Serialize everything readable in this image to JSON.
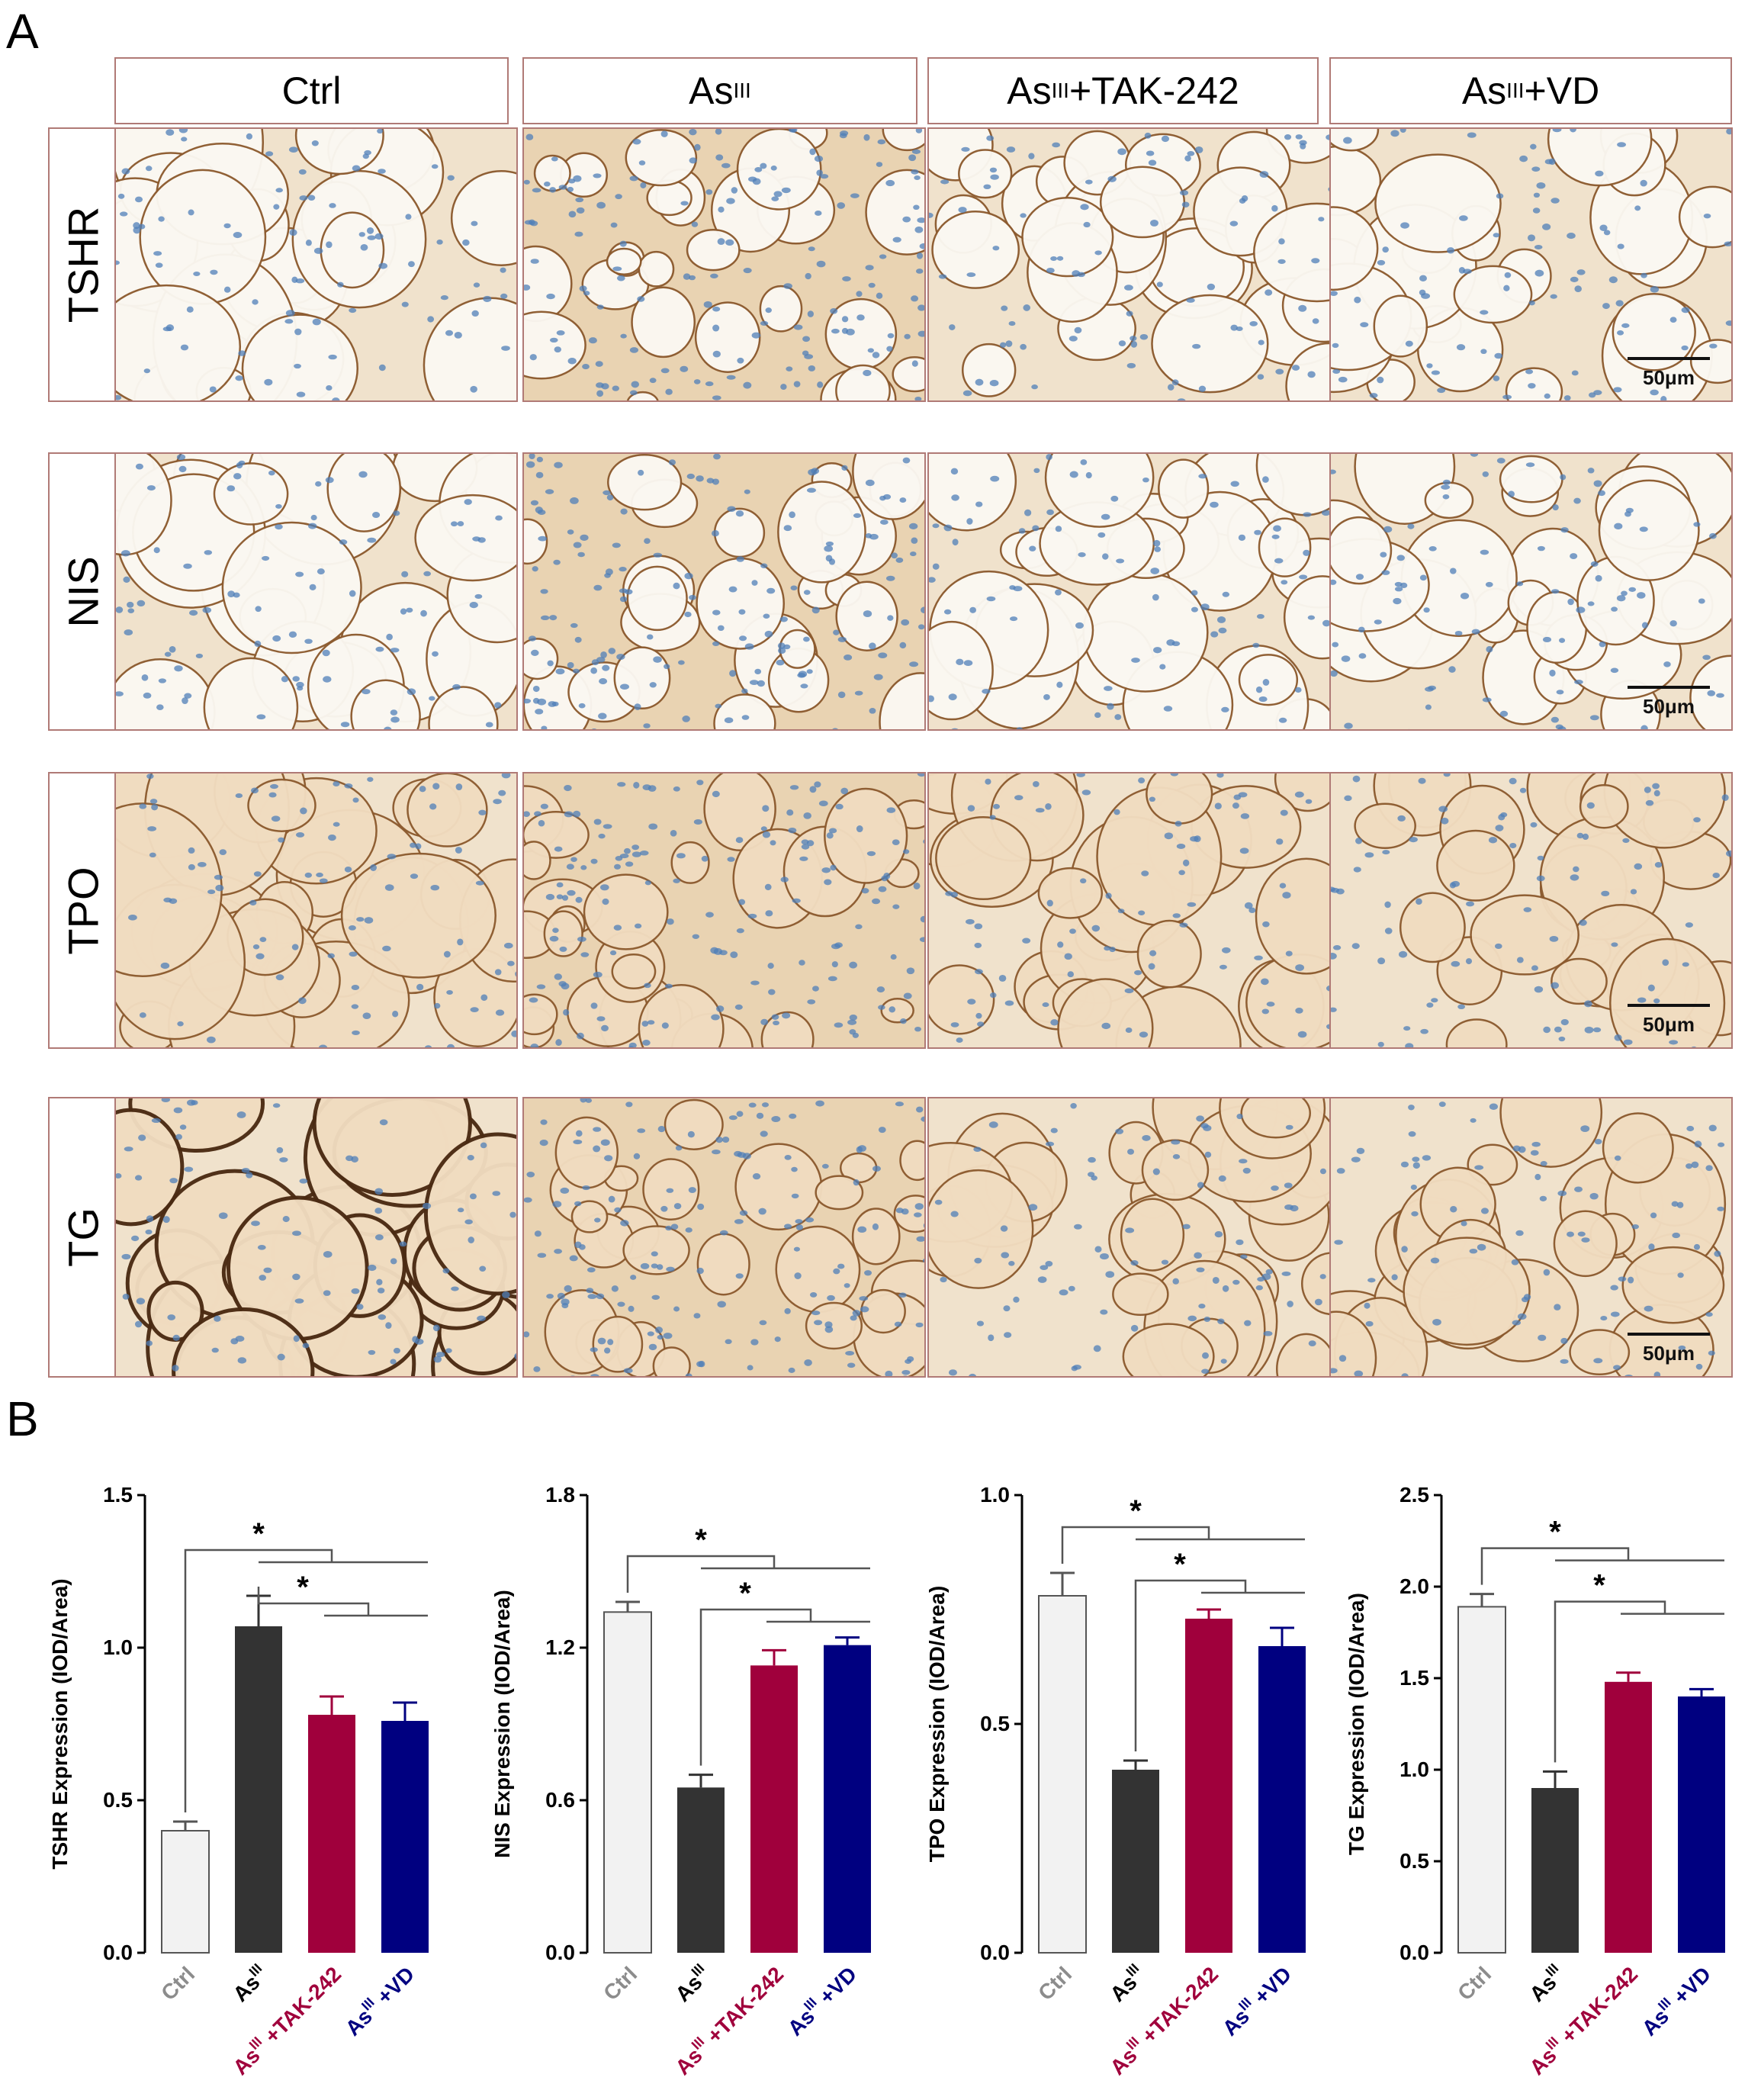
{
  "panel_a_label": "A",
  "panel_b_label": "B",
  "columns": [
    {
      "base": "Ctrl",
      "sup": "",
      "suffix": ""
    },
    {
      "base": "As",
      "sup": "III",
      "suffix": ""
    },
    {
      "base": "As",
      "sup": "III",
      "suffix": "+TAK-242"
    },
    {
      "base": "As",
      "sup": "III",
      "suffix": "+VD"
    }
  ],
  "rows": [
    "TSHR",
    "NIS",
    "TPO",
    "TG"
  ],
  "scale_bar_label": "50μm",
  "stain_colors": {
    "background": "#f7f3ec",
    "colloid": "#f1dcc0",
    "nuclei": "#4f7fb8",
    "rim": "#8c5a2e"
  },
  "group_colors": [
    "#f2f2f2",
    "#333333",
    "#a0003c",
    "#000080"
  ],
  "tick_label_colors": [
    "#8c8c8c",
    "#000000",
    "#a0003c",
    "#000080"
  ],
  "chart_data": [
    {
      "type": "bar",
      "categories": [
        "Ctrl",
        "As III",
        "As III +TAK-242",
        "As III +VD"
      ],
      "values": [
        0.4,
        1.07,
        0.78,
        0.76
      ],
      "errors": [
        0.03,
        0.1,
        0.06,
        0.06
      ],
      "ylabel": "TSHR Expression (IOD/Area)",
      "ylim": [
        0,
        1.5
      ],
      "yticks": [
        "0.0",
        "0.5",
        "1.0",
        "1.5"
      ],
      "significance": [
        "*",
        "*"
      ]
    },
    {
      "type": "bar",
      "categories": [
        "Ctrl",
        "As III",
        "As III +TAK-242",
        "As III +VD"
      ],
      "values": [
        1.34,
        0.65,
        1.13,
        1.21
      ],
      "errors": [
        0.04,
        0.05,
        0.06,
        0.03
      ],
      "ylabel": "NIS Expression (IOD/Area)",
      "ylim": [
        0,
        1.8
      ],
      "yticks": [
        "0.0",
        "0.6",
        "1.2",
        "1.8"
      ],
      "significance": [
        "*",
        "*"
      ]
    },
    {
      "type": "bar",
      "categories": [
        "Ctrl",
        "As III",
        "As III +TAK-242",
        "As III +VD"
      ],
      "values": [
        0.78,
        0.4,
        0.73,
        0.67
      ],
      "errors": [
        0.05,
        0.02,
        0.02,
        0.04
      ],
      "ylabel": "TPO Expression (IOD/Area)",
      "ylim": [
        0,
        1.0
      ],
      "yticks": [
        "0.0",
        "0.5",
        "1.0"
      ],
      "significance": [
        "*",
        "*"
      ]
    },
    {
      "type": "bar",
      "categories": [
        "Ctrl",
        "As III",
        "As III +TAK-242",
        "As III +VD"
      ],
      "values": [
        1.89,
        0.9,
        1.48,
        1.4
      ],
      "errors": [
        0.07,
        0.09,
        0.05,
        0.04
      ],
      "ylabel": "TG Expression (IOD/Area)",
      "ylim": [
        0,
        2.5
      ],
      "yticks": [
        "0.0",
        "0.5",
        "1.0",
        "1.5",
        "2.0",
        "2.5"
      ],
      "significance": [
        "*",
        "*"
      ]
    }
  ]
}
